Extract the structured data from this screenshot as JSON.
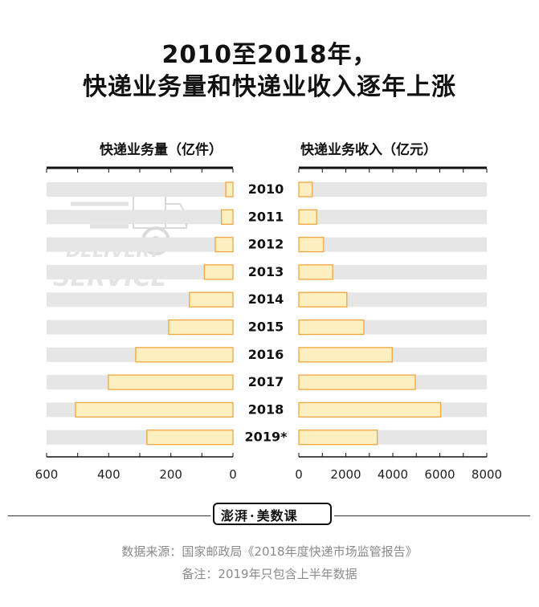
{
  "title": {
    "line1": "2010至2018年，",
    "line2": "快递业务量和快递业收入逐年上涨"
  },
  "chart_data": [
    {
      "type": "bar",
      "orientation": "horizontal",
      "direction": "right-to-left",
      "title": "快递业务量（亿件）",
      "categories": [
        "2010",
        "2011",
        "2012",
        "2013",
        "2014",
        "2015",
        "2016",
        "2017",
        "2018",
        "2019*"
      ],
      "values": [
        23,
        37,
        57,
        92,
        140,
        207,
        313,
        401,
        507,
        277
      ],
      "xlim": [
        0,
        600
      ],
      "xticks": [
        "600",
        "400",
        "200",
        "0"
      ],
      "tick_values": [
        600,
        400,
        200,
        0
      ],
      "grid": false
    },
    {
      "type": "bar",
      "orientation": "horizontal",
      "direction": "left-to-right",
      "title": "快递业务收入（亿元）",
      "categories": [
        "2010",
        "2011",
        "2012",
        "2013",
        "2014",
        "2015",
        "2016",
        "2017",
        "2018",
        "2019*"
      ],
      "values": [
        575,
        758,
        1055,
        1442,
        2045,
        2770,
        3974,
        4957,
        6038,
        3339
      ],
      "xlim": [
        0,
        8000
      ],
      "xticks": [
        "0",
        "2000",
        "4000",
        "6000",
        "8000"
      ],
      "tick_values": [
        0,
        2000,
        4000,
        6000,
        8000
      ],
      "grid": false
    }
  ],
  "colors": {
    "bar_fill": "#fdefc0",
    "bar_stroke": "#f0a640",
    "row_band": "#e6e6e6",
    "axis": "#111111"
  },
  "watermark": {
    "line1": "DELIVERY",
    "line2": "SERVICE"
  },
  "logo": {
    "part1": "澎湃",
    "dot": "·",
    "part2": "美数课"
  },
  "footer": {
    "source": "数据来源：国家邮政局《2018年度快递市场监管报告》",
    "note": "备注：2019年只包含上半年数据"
  }
}
